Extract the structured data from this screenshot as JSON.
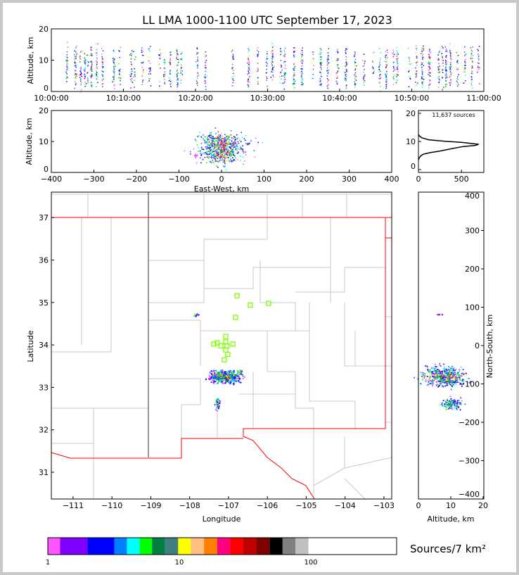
{
  "chart_data": [
    {
      "type": "scatter",
      "name": "time-height",
      "title": "LL LMA 1000-1100 UTC September 17, 2023",
      "ylabel": "Altitude, km",
      "ylim": [
        0,
        20
      ],
      "yticks": [
        "0",
        "10",
        "20"
      ],
      "xticks": [
        "10:00:00",
        "10:10:00",
        "10:20:00",
        "10:30:00",
        "10:40:00",
        "10:50:00",
        "11:00:00"
      ],
      "xlim_minutes": [
        0,
        60
      ],
      "burst_minutes": [
        2.1,
        3.3,
        4.0,
        4.6,
        5.0,
        5.5,
        6.2,
        7.0,
        8.6,
        9.4,
        11.0,
        11.5,
        12.6,
        13.6,
        15.0,
        15.6,
        16.4,
        17.4,
        18.0,
        20.2,
        21.3,
        25.1,
        27.3,
        28.6,
        29.8,
        30.6,
        31.8,
        32.3,
        33.6,
        34.7,
        36.2,
        37.3,
        38.3,
        39.6,
        40.8,
        42.1,
        43.3,
        44.6,
        45.5,
        46.4,
        47.4,
        47.9,
        49.6,
        50.6,
        51.4,
        52.4,
        53.7,
        54.2,
        54.7,
        55.3,
        56.3,
        57.3,
        58.3,
        59.2
      ],
      "altitude_range_km": [
        2,
        15
      ]
    },
    {
      "type": "scatter",
      "name": "east-west-altitude",
      "xlabel": "East-West, km",
      "ylabel": "Altitude, km",
      "xlim": [
        -400,
        400
      ],
      "ylim": [
        0,
        20
      ],
      "xticks": [
        "−400",
        "−300",
        "−200",
        "−100",
        "0",
        "100",
        "200",
        "300",
        "400"
      ],
      "yticks": [
        "0",
        "10",
        "20"
      ]
    },
    {
      "type": "line",
      "name": "altitude-histogram",
      "annotation": "11,637 sources",
      "xlim": [
        0,
        760
      ],
      "ylim": [
        -0.5,
        21
      ],
      "xticks": [
        "0",
        "500"
      ],
      "yticks": [
        "0",
        "10",
        "20"
      ],
      "points": [
        [
          0,
          12.5
        ],
        [
          10,
          12
        ],
        [
          40,
          11.3
        ],
        [
          120,
          10.6
        ],
        [
          300,
          10.1
        ],
        [
          500,
          9.7
        ],
        [
          700,
          9.0
        ],
        [
          660,
          8.6
        ],
        [
          520,
          8.2
        ],
        [
          380,
          7.4
        ],
        [
          250,
          6.6
        ],
        [
          130,
          6.0
        ],
        [
          60,
          5.5
        ],
        [
          30,
          5.0
        ],
        [
          10,
          4.2
        ],
        [
          0,
          3.5
        ]
      ]
    },
    {
      "type": "scatter",
      "name": "plan-view",
      "xlabel": "Longitude",
      "ylabel": "Latitude",
      "xlim": [
        -111.56,
        -102.8
      ],
      "ylim": [
        30.37,
        37.6
      ],
      "xticks": [
        "−111",
        "−110",
        "−109",
        "−108",
        "−107",
        "−106",
        "−105",
        "−104",
        "−103"
      ],
      "yticks": [
        "31",
        "32",
        "33",
        "34",
        "35",
        "36",
        "37"
      ],
      "stations": [
        [
          -106.78,
          35.16
        ],
        [
          -106.44,
          34.94
        ],
        [
          -105.97,
          34.98
        ],
        [
          -106.82,
          34.65
        ],
        [
          -107.07,
          34.2
        ],
        [
          -107.29,
          34.05
        ],
        [
          -107.38,
          34.02
        ],
        [
          -107.07,
          34.07
        ],
        [
          -107.2,
          33.98
        ],
        [
          -107.04,
          33.98
        ],
        [
          -106.89,
          34.02
        ],
        [
          -107.07,
          33.88
        ],
        [
          -107.02,
          33.78
        ],
        [
          -107.11,
          33.65
        ]
      ],
      "clusters": [
        {
          "lon": -107.1,
          "lat": 33.27,
          "slon": 0.18,
          "slat": 0.07,
          "n": 500
        },
        {
          "lon": -107.3,
          "lat": 32.63,
          "slon": 0.03,
          "slat": 0.07,
          "n": 40
        },
        {
          "lon": -107.87,
          "lat": 34.73,
          "slon": 0.03,
          "slat": 0.02,
          "n": 12
        },
        {
          "lon": -106.73,
          "lat": 33.37,
          "slon": 0.04,
          "slat": 0.03,
          "n": 25
        }
      ]
    },
    {
      "type": "scatter",
      "name": "north-south-altitude",
      "xlabel": "Altitude, km",
      "ylabel": "North-South, km",
      "xlim": [
        0,
        20
      ],
      "ylim": [
        -400,
        400
      ],
      "xticks": [
        "0",
        "10",
        "20"
      ],
      "yticks": [
        "−400",
        "−300",
        "−200",
        "−100",
        "0",
        "100",
        "200",
        "300",
        "400"
      ]
    },
    {
      "type": "colorbar",
      "label": "Sources/7 km²",
      "ticks": [
        "1",
        "10",
        "100"
      ],
      "colors": [
        "#ff55ff",
        "#7f00ff",
        "#0000ff",
        "#007fff",
        "#00ffff",
        "#00ff00",
        "#007f40",
        "#407f7f",
        "#ffff00",
        "#ffc080",
        "#ff8000",
        "#ff0080",
        "#ff0000",
        "#c00000",
        "#800000",
        "#000000",
        "#808080",
        "#c0c0c0",
        "#ffffff"
      ],
      "bounds": [
        1,
        1.24,
        2.0,
        3.2,
        4.0,
        5.0,
        6.2,
        7.8,
        9.8,
        12.2,
        15.4,
        19.4,
        24.3,
        30.5,
        38.5,
        48.5,
        61,
        76.5,
        96,
        120
      ]
    }
  ]
}
